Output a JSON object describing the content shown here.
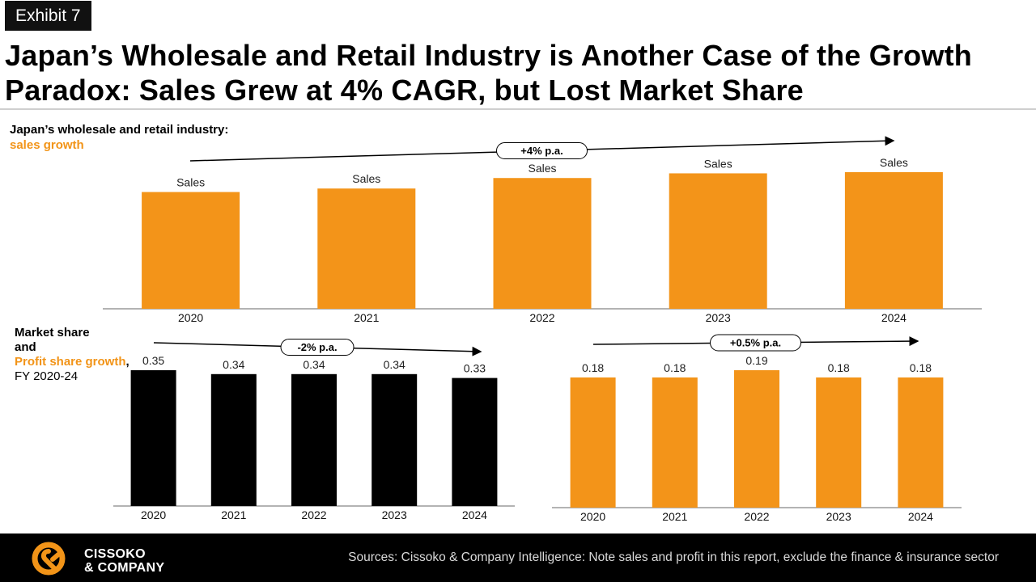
{
  "exhibit_label": "Exhibit 7",
  "title": "Japan’s Wholesale and Retail Industry is Another Case of the Growth Paradox: Sales Grew at 4% CAGR, but Lost Market Share",
  "sales_subtitle": {
    "line1": "Japan’s wholesale and retail industry:",
    "line2": "sales growth"
  },
  "share_subtitle": {
    "line1": "Market share",
    "line2": "and",
    "line3": "Profit share growth",
    "line3_suffix": ",",
    "line4": "FY 2020-24"
  },
  "footer": {
    "logo_line1": "CISSOKO",
    "logo_line2": "& COMPANY",
    "sources": "Sources: Cissoko & Company Intelligence: Note sales and profit in this report, exclude the finance & insurance sector"
  },
  "colors": {
    "orange": "#F39419",
    "black": "#000000",
    "footer_bg": "#000000"
  },
  "chart_data": [
    {
      "type": "bar",
      "categories": [
        "2020",
        "2021",
        "2022",
        "2023",
        "2024"
      ],
      "values": [
        100,
        103,
        112,
        116,
        117
      ],
      "data_labels": [
        "Sales",
        "Sales",
        "Sales",
        "Sales",
        "Sales"
      ],
      "annotation": "+4% p.a.",
      "color": "#F39419"
    },
    {
      "type": "bar",
      "categories": [
        "2020",
        "2021",
        "2022",
        "2023",
        "2024"
      ],
      "values": [
        0.35,
        0.34,
        0.34,
        0.34,
        0.33
      ],
      "annotation": "-2% p.a.",
      "ylim": [
        0,
        0.35
      ],
      "color": "#000000"
    },
    {
      "type": "bar",
      "categories": [
        "2020",
        "2021",
        "2022",
        "2023",
        "2024"
      ],
      "values": [
        0.18,
        0.18,
        0.19,
        0.18,
        0.18
      ],
      "annotation": "+0.5% p.a.",
      "ylim": [
        0,
        0.19
      ],
      "color": "#F39419"
    }
  ]
}
